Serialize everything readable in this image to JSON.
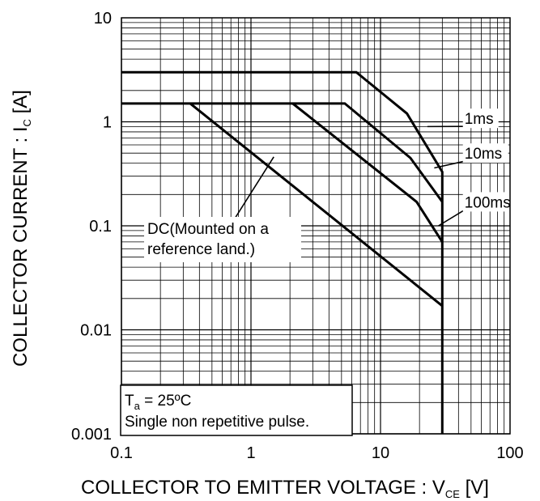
{
  "chart_data": {
    "type": "line",
    "x_scale": "log",
    "y_scale": "log",
    "xlim": [
      0.1,
      100
    ],
    "ylim": [
      0.001,
      10
    ],
    "grid": true,
    "x_ticks": [
      {
        "value": 0.1,
        "label": "0.1"
      },
      {
        "value": 1,
        "label": "1"
      },
      {
        "value": 10,
        "label": "10"
      },
      {
        "value": 100,
        "label": "100"
      }
    ],
    "y_ticks": [
      {
        "value": 10,
        "label": "10"
      },
      {
        "value": 1,
        "label": "1"
      },
      {
        "value": 0.1,
        "label": "0.1"
      },
      {
        "value": 0.01,
        "label": "0.01"
      },
      {
        "value": 0.001,
        "label": "0.001"
      }
    ],
    "xlabel": {
      "main": "COLLECTOR TO EMITTER VOLTAGE : V",
      "sub": "CE",
      "tail": " [V]"
    },
    "ylabel": {
      "main": "COLLECTOR CURRENT : I",
      "sub": "C",
      "tail": " [A]"
    },
    "series": [
      {
        "name": "1ms",
        "points": [
          [
            0.1,
            3.0
          ],
          [
            6.5,
            3.0
          ],
          [
            16,
            1.2
          ],
          [
            30,
            0.33
          ],
          [
            30,
            0.001
          ]
        ]
      },
      {
        "name": "10ms",
        "points": [
          [
            0.1,
            1.5
          ],
          [
            5.3,
            1.5
          ],
          [
            17,
            0.45
          ],
          [
            30,
            0.17
          ]
        ]
      },
      {
        "name": "100ms",
        "points": [
          [
            2.1,
            1.5
          ],
          [
            19,
            0.17
          ],
          [
            30,
            0.07
          ]
        ]
      },
      {
        "name": "DC(Mounted on a reference land.)",
        "points": [
          [
            0.34,
            1.5
          ],
          [
            30,
            0.017
          ]
        ]
      }
    ],
    "annotations": [
      {
        "text": "1ms",
        "at": [
          23,
          0.9
        ],
        "label_at": [
          42,
          1.08
        ]
      },
      {
        "text": "10ms",
        "at": [
          26,
          0.36
        ],
        "label_at": [
          42,
          0.5
        ]
      },
      {
        "text": "100ms",
        "at": [
          28,
          0.1
        ],
        "label_at": [
          42,
          0.17
        ]
      },
      {
        "text_lines": [
          "DC(Mounted on a",
          "reference land.)"
        ],
        "at": [
          1.5,
          0.46
        ]
      }
    ],
    "conditions": {
      "ta_main": "T",
      "ta_sub": "a",
      "ta_rest": " = 25ºC",
      "line2": "Single non repetitive pulse."
    }
  }
}
